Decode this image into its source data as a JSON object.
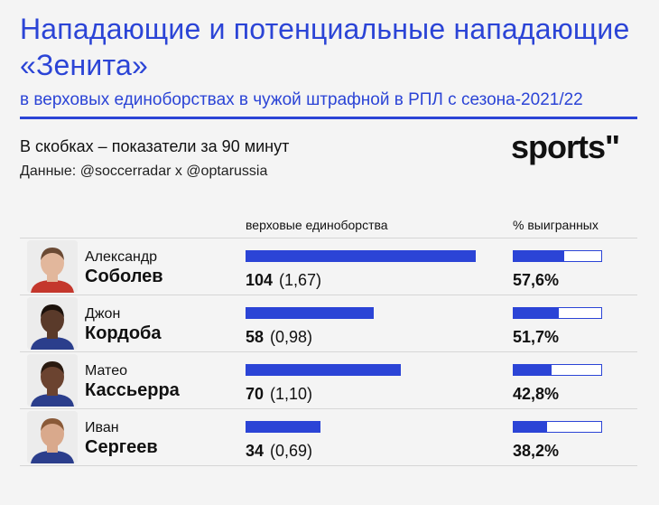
{
  "header": {
    "title": "Нападающие и потенциальные нападающие «Зенита»",
    "subtitle": "в верховых единоборствах в чужой штрафной в РПЛ с сезона-2021/22",
    "note": "В скобках – показатели за 90 минут",
    "source": "Данные: @soccerradar x @optarussia",
    "logo": "sports\""
  },
  "colors": {
    "accent": "#2b44d6",
    "bar_track": "#ffffff"
  },
  "chart_data": {
    "type": "bar",
    "columns": {
      "duels": "верховые единоборства",
      "won_pct": "% выигранных"
    },
    "duels_max": 110,
    "players": [
      {
        "first_name": "Александр",
        "last_name": "Соболев",
        "duels": 104,
        "duels_label": "104",
        "per90": "(1,67)",
        "won_pct": 57.6,
        "won_label": "57,6%"
      },
      {
        "first_name": "Джон",
        "last_name": "Кордоба",
        "duels": 58,
        "duels_label": "58",
        "per90": "(0,98)",
        "won_pct": 51.7,
        "won_label": "51,7%"
      },
      {
        "first_name": "Матео",
        "last_name": "Кассьерра",
        "duels": 70,
        "duels_label": "70",
        "per90": "(1,10)",
        "won_pct": 42.8,
        "won_label": "42,8%"
      },
      {
        "first_name": "Иван",
        "last_name": "Сергеев",
        "duels": 34,
        "duels_label": "34",
        "per90": "(0,69)",
        "won_pct": 38.2,
        "won_label": "38,2%"
      }
    ]
  }
}
